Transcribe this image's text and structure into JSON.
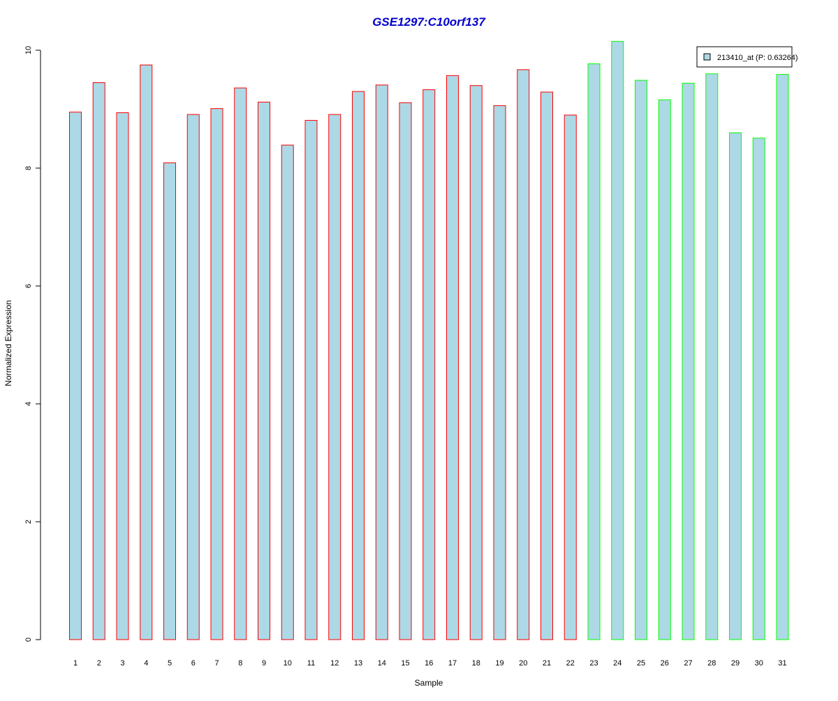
{
  "chart_data": {
    "type": "bar",
    "title": "GSE1297:C10orf137",
    "xlabel": "Sample",
    "ylabel": "Normalized Expression",
    "ylim": [
      0,
      10
    ],
    "yticks": [
      "0",
      "2",
      "4",
      "6",
      "8",
      "10"
    ],
    "categories": [
      "1",
      "2",
      "3",
      "4",
      "5",
      "6",
      "7",
      "8",
      "9",
      "10",
      "11",
      "12",
      "13",
      "14",
      "15",
      "16",
      "17",
      "18",
      "19",
      "20",
      "21",
      "22",
      "23",
      "24",
      "25",
      "26",
      "27",
      "28",
      "29",
      "30",
      "31"
    ],
    "series": [
      {
        "name": "213410_at (P: 0.63264)",
        "values": [
          8.95,
          9.45,
          8.94,
          9.75,
          8.09,
          8.91,
          9.01,
          9.36,
          9.12,
          8.39,
          8.81,
          8.91,
          9.3,
          9.41,
          9.11,
          9.33,
          9.57,
          9.4,
          9.06,
          9.67,
          9.29,
          8.9,
          9.77,
          10.15,
          9.49,
          9.16,
          9.44,
          9.6,
          8.6,
          8.51,
          9.59
        ]
      }
    ],
    "bar_groups": [
      "red",
      "red",
      "red",
      "red",
      "red",
      "red",
      "red",
      "red",
      "red",
      "red",
      "red",
      "red",
      "red",
      "red",
      "red",
      "red",
      "red",
      "red",
      "red",
      "red",
      "red",
      "red",
      "green",
      "green",
      "green",
      "green",
      "green",
      "green",
      "green",
      "green",
      "green"
    ],
    "colors": {
      "title": "#0000cc",
      "bar_fill": "#add8e6",
      "red_group_border": "#ff0000",
      "green_group_border": "#00ff00"
    },
    "legend_position": "top-right",
    "grid": false
  }
}
